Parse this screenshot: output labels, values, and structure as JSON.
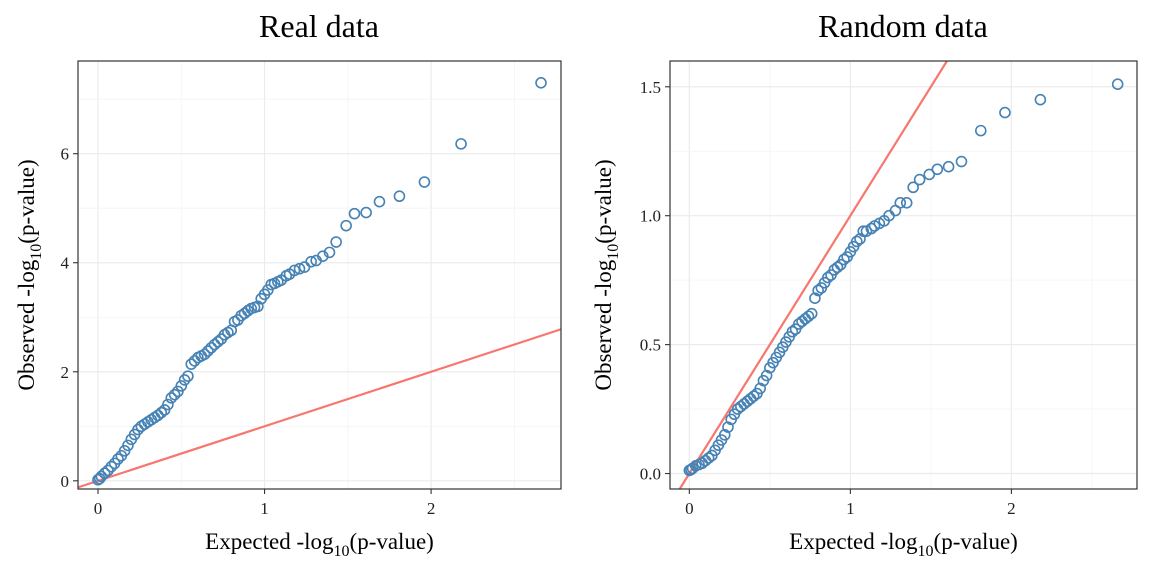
{
  "chart_data": [
    {
      "type": "scatter",
      "title": "Real data",
      "xlabel": {
        "main": "Expected -log",
        "sub": "10",
        "tail": "(p-value)"
      },
      "ylabel": {
        "main": "Observed -log",
        "sub": "10",
        "tail": "(p-value)"
      },
      "xlim": [
        -0.12,
        2.78
      ],
      "ylim": [
        -0.15,
        7.7
      ],
      "xticks": [
        0,
        1,
        2
      ],
      "yticks": [
        0,
        2,
        4,
        6
      ],
      "xtick_labels": [
        "0",
        "1",
        "2"
      ],
      "ytick_labels": [
        "0",
        "2",
        "4",
        "6"
      ],
      "grid": true,
      "reference_line": {
        "slope": 1,
        "intercept": 0,
        "color": "#F8766D"
      },
      "point_color": "#4682B4",
      "points": [
        [
          2.66,
          7.3
        ],
        [
          2.18,
          6.18
        ],
        [
          1.96,
          5.48
        ],
        [
          1.81,
          5.22
        ],
        [
          1.69,
          5.12
        ],
        [
          1.61,
          4.92
        ],
        [
          1.54,
          4.9
        ],
        [
          1.49,
          4.68
        ],
        [
          1.43,
          4.38
        ],
        [
          1.39,
          4.19
        ],
        [
          1.35,
          4.12
        ],
        [
          1.31,
          4.04
        ],
        [
          1.28,
          4.02
        ],
        [
          1.24,
          3.92
        ],
        [
          1.21,
          3.89
        ],
        [
          1.18,
          3.86
        ],
        [
          1.15,
          3.79
        ],
        [
          1.13,
          3.76
        ],
        [
          1.1,
          3.68
        ],
        [
          1.08,
          3.65
        ],
        [
          1.06,
          3.62
        ],
        [
          1.04,
          3.6
        ],
        [
          1.02,
          3.5
        ],
        [
          1.0,
          3.42
        ],
        [
          0.98,
          3.34
        ],
        [
          0.96,
          3.2
        ],
        [
          0.94,
          3.18
        ],
        [
          0.92,
          3.16
        ],
        [
          0.9,
          3.12
        ],
        [
          0.88,
          3.07
        ],
        [
          0.86,
          3.03
        ],
        [
          0.84,
          2.95
        ],
        [
          0.82,
          2.92
        ],
        [
          0.8,
          2.76
        ],
        [
          0.78,
          2.72
        ],
        [
          0.76,
          2.68
        ],
        [
          0.74,
          2.6
        ],
        [
          0.72,
          2.55
        ],
        [
          0.7,
          2.5
        ],
        [
          0.68,
          2.44
        ],
        [
          0.66,
          2.38
        ],
        [
          0.64,
          2.32
        ],
        [
          0.62,
          2.29
        ],
        [
          0.6,
          2.26
        ],
        [
          0.58,
          2.2
        ],
        [
          0.56,
          2.14
        ],
        [
          0.54,
          1.92
        ],
        [
          0.52,
          1.85
        ],
        [
          0.5,
          1.74
        ],
        [
          0.48,
          1.64
        ],
        [
          0.46,
          1.58
        ],
        [
          0.44,
          1.52
        ],
        [
          0.42,
          1.4
        ],
        [
          0.4,
          1.3
        ],
        [
          0.38,
          1.25
        ],
        [
          0.36,
          1.2
        ],
        [
          0.34,
          1.16
        ],
        [
          0.32,
          1.12
        ],
        [
          0.3,
          1.08
        ],
        [
          0.28,
          1.04
        ],
        [
          0.26,
          1.0
        ],
        [
          0.24,
          0.94
        ],
        [
          0.22,
          0.85
        ],
        [
          0.2,
          0.76
        ],
        [
          0.18,
          0.65
        ],
        [
          0.16,
          0.55
        ],
        [
          0.14,
          0.46
        ],
        [
          0.12,
          0.4
        ],
        [
          0.1,
          0.32
        ],
        [
          0.08,
          0.26
        ],
        [
          0.06,
          0.19
        ],
        [
          0.04,
          0.14
        ],
        [
          0.02,
          0.08
        ],
        [
          0.01,
          0.04
        ],
        [
          0.0,
          0.02
        ]
      ]
    },
    {
      "type": "scatter",
      "title": "Random data",
      "xlabel": {
        "main": "Expected -log",
        "sub": "10",
        "tail": "(p-value)"
      },
      "ylabel": {
        "main": "Observed -log",
        "sub": "10",
        "tail": "(p-value)"
      },
      "xlim": [
        -0.12,
        2.78
      ],
      "ylim": [
        -0.06,
        1.6
      ],
      "xticks": [
        0,
        1,
        2
      ],
      "yticks": [
        0.0,
        0.5,
        1.0,
        1.5
      ],
      "xtick_labels": [
        "0",
        "1",
        "2"
      ],
      "ytick_labels": [
        "0.0",
        "0.5",
        "1.0",
        "1.5"
      ],
      "grid": true,
      "reference_line": {
        "slope": 1,
        "intercept": 0,
        "color": "#F8766D"
      },
      "point_color": "#4682B4",
      "points": [
        [
          2.66,
          1.51
        ],
        [
          2.18,
          1.45
        ],
        [
          1.96,
          1.4
        ],
        [
          1.81,
          1.33
        ],
        [
          1.69,
          1.21
        ],
        [
          1.61,
          1.19
        ],
        [
          1.54,
          1.18
        ],
        [
          1.49,
          1.16
        ],
        [
          1.43,
          1.14
        ],
        [
          1.39,
          1.11
        ],
        [
          1.35,
          1.05
        ],
        [
          1.31,
          1.05
        ],
        [
          1.28,
          1.02
        ],
        [
          1.24,
          1.0
        ],
        [
          1.21,
          0.98
        ],
        [
          1.18,
          0.97
        ],
        [
          1.15,
          0.96
        ],
        [
          1.13,
          0.95
        ],
        [
          1.1,
          0.94
        ],
        [
          1.08,
          0.94
        ],
        [
          1.06,
          0.91
        ],
        [
          1.04,
          0.9
        ],
        [
          1.02,
          0.88
        ],
        [
          1.0,
          0.86
        ],
        [
          0.98,
          0.84
        ],
        [
          0.96,
          0.83
        ],
        [
          0.94,
          0.81
        ],
        [
          0.92,
          0.8
        ],
        [
          0.9,
          0.79
        ],
        [
          0.88,
          0.77
        ],
        [
          0.86,
          0.76
        ],
        [
          0.84,
          0.74
        ],
        [
          0.82,
          0.72
        ],
        [
          0.8,
          0.71
        ],
        [
          0.78,
          0.68
        ],
        [
          0.76,
          0.62
        ],
        [
          0.74,
          0.61
        ],
        [
          0.72,
          0.6
        ],
        [
          0.7,
          0.59
        ],
        [
          0.68,
          0.58
        ],
        [
          0.66,
          0.56
        ],
        [
          0.64,
          0.55
        ],
        [
          0.62,
          0.53
        ],
        [
          0.6,
          0.51
        ],
        [
          0.58,
          0.49
        ],
        [
          0.56,
          0.47
        ],
        [
          0.54,
          0.45
        ],
        [
          0.52,
          0.43
        ],
        [
          0.5,
          0.41
        ],
        [
          0.48,
          0.38
        ],
        [
          0.46,
          0.36
        ],
        [
          0.44,
          0.33
        ],
        [
          0.42,
          0.31
        ],
        [
          0.4,
          0.3
        ],
        [
          0.38,
          0.29
        ],
        [
          0.36,
          0.28
        ],
        [
          0.34,
          0.27
        ],
        [
          0.32,
          0.26
        ],
        [
          0.3,
          0.25
        ],
        [
          0.28,
          0.23
        ],
        [
          0.26,
          0.21
        ],
        [
          0.24,
          0.18
        ],
        [
          0.22,
          0.15
        ],
        [
          0.2,
          0.13
        ],
        [
          0.18,
          0.11
        ],
        [
          0.16,
          0.09
        ],
        [
          0.14,
          0.07
        ],
        [
          0.12,
          0.06
        ],
        [
          0.1,
          0.05
        ],
        [
          0.08,
          0.04
        ],
        [
          0.06,
          0.035
        ],
        [
          0.04,
          0.03
        ],
        [
          0.02,
          0.02
        ],
        [
          0.01,
          0.015
        ],
        [
          0.0,
          0.012
        ]
      ]
    }
  ]
}
